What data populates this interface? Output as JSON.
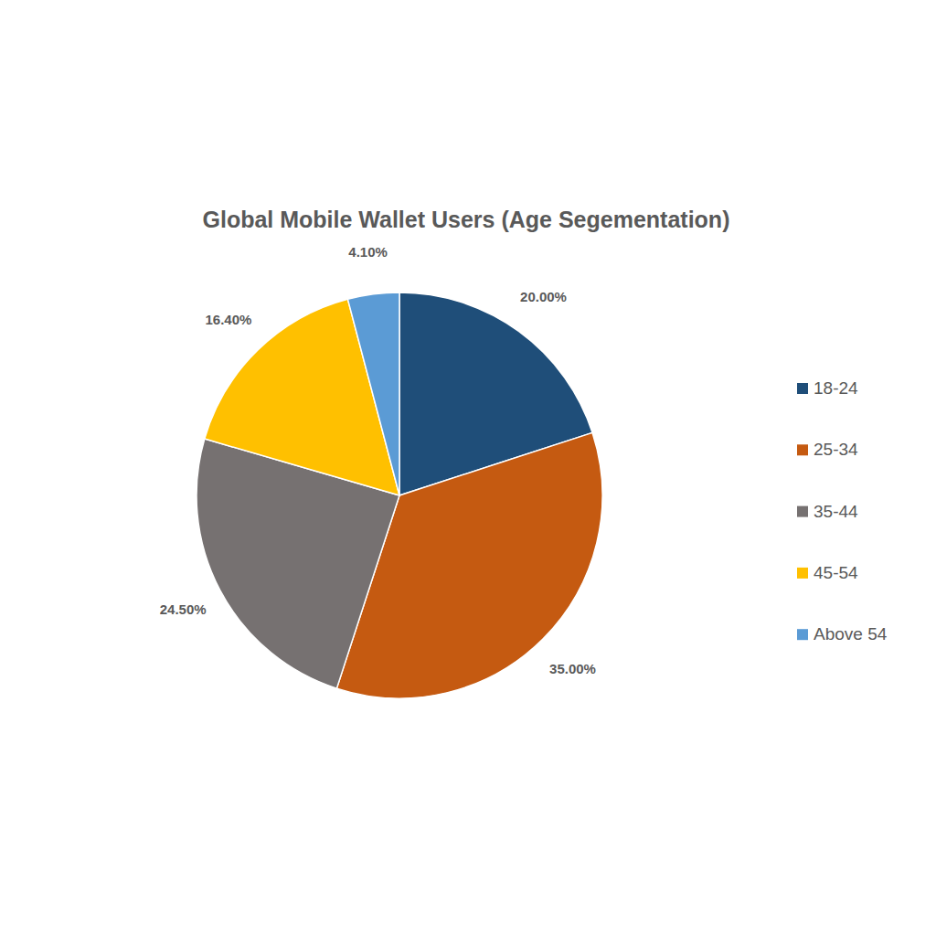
{
  "chart_data": {
    "type": "pie",
    "title": "Global Mobile Wallet Users (Age Segementation)",
    "categories": [
      "18-24",
      "25-34",
      "35-44",
      "45-54",
      "Above 54"
    ],
    "values": [
      20,
      35,
      24.5,
      16.4,
      4.1
    ],
    "value_labels": [
      "20.00%",
      "35.00%",
      "24.50%",
      "16.40%",
      "4.10%"
    ],
    "colors": [
      "#1f4e79",
      "#c55a11",
      "#767171",
      "#ffc000",
      "#5b9bd5"
    ],
    "data_labels": true,
    "legend": "right"
  }
}
